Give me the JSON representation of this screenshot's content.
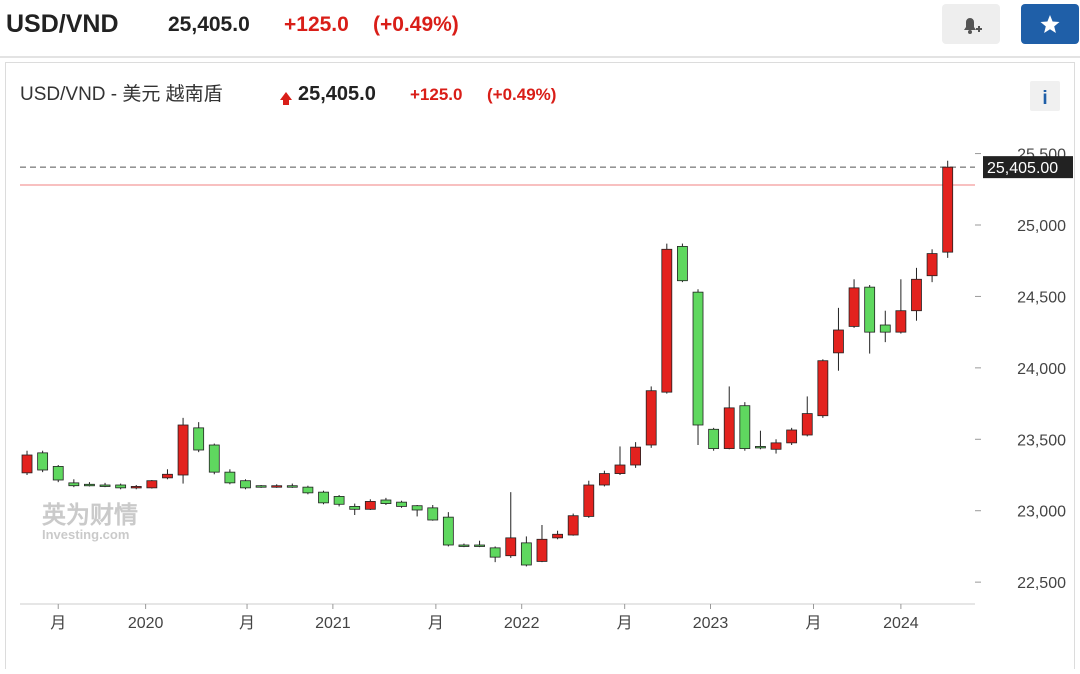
{
  "header": {
    "symbol": "USD/VND",
    "last": "25,405.0",
    "change": "+125.0",
    "change_pct": "(+0.49%)"
  },
  "chart_data": {
    "type": "candlestick",
    "title": "USD/VND - 美元 越南盾",
    "last": "25,405.0",
    "change": "+125.0",
    "change_pct": "(+0.49%)",
    "info": "i",
    "watermark": [
      "英为财情",
      "Investing.com"
    ],
    "up_color": "#e3221e",
    "down_color": "#5fd85f",
    "open": [
      23265,
      23405,
      23310,
      23195,
      23185,
      23180,
      23180,
      23165,
      23160,
      23230,
      23250,
      23580,
      23460,
      23270,
      23210,
      23175,
      23170,
      23175,
      23165,
      23130,
      23100,
      23030,
      23010,
      23075,
      23060,
      23035,
      23020,
      22955,
      22760,
      22760,
      22740,
      22685,
      22775,
      22645,
      22810,
      22830,
      22960,
      23180,
      23260,
      23320,
      23460,
      23830,
      24850,
      24530,
      23570,
      23435,
      23735,
      23450,
      23430,
      23475,
      23530,
      23665,
      24105,
      24290,
      24565,
      24300,
      24250,
      24400,
      24645,
      24810
    ],
    "high": [
      23420,
      23420,
      23320,
      23220,
      23200,
      23195,
      23190,
      23180,
      23215,
      23290,
      23650,
      23620,
      23470,
      23290,
      23220,
      23180,
      23185,
      23190,
      23175,
      23140,
      23110,
      23050,
      23080,
      23090,
      23070,
      23040,
      23040,
      22990,
      22770,
      22790,
      22750,
      23130,
      22820,
      22900,
      22860,
      22980,
      23210,
      23280,
      23450,
      23480,
      23870,
      24870,
      24870,
      24550,
      23580,
      23870,
      23760,
      23560,
      23500,
      23580,
      23800,
      24060,
      24420,
      24620,
      24580,
      24400,
      24620,
      24700,
      24830,
      25450
    ],
    "low": [
      23250,
      23270,
      23200,
      23165,
      23170,
      23165,
      23150,
      23150,
      23155,
      23220,
      23190,
      23410,
      23255,
      23185,
      23150,
      23160,
      23160,
      23160,
      23115,
      23045,
      23030,
      22970,
      23005,
      23040,
      23020,
      22960,
      22930,
      22750,
      22745,
      22745,
      22640,
      22670,
      22610,
      22640,
      22800,
      22825,
      22950,
      23170,
      23250,
      23300,
      23440,
      23820,
      24600,
      23460,
      23420,
      23430,
      23420,
      23430,
      23400,
      23460,
      23520,
      23650,
      23980,
      24280,
      24100,
      24180,
      24240,
      24330,
      24600,
      24770
    ],
    "close": [
      23390,
      23285,
      23215,
      23175,
      23175,
      23175,
      23160,
      23170,
      23210,
      23255,
      23600,
      23425,
      23270,
      23195,
      23160,
      23170,
      23175,
      23170,
      23125,
      23055,
      23045,
      23010,
      23065,
      23050,
      23030,
      23005,
      22935,
      22760,
      22755,
      22755,
      22675,
      22810,
      22620,
      22800,
      22835,
      22965,
      23180,
      23260,
      23320,
      23445,
      23840,
      24830,
      24610,
      23600,
      23435,
      23720,
      23435,
      23440,
      23475,
      23565,
      23680,
      24050,
      24265,
      24560,
      24250,
      24250,
      24400,
      24620,
      24800,
      25405
    ],
    "xlim": [
      -0.45,
      60.75
    ],
    "xticks": [
      {
        "value": 2,
        "label": "月"
      },
      {
        "value": 7.6,
        "label": "2020"
      },
      {
        "value": 14.1,
        "label": "月"
      },
      {
        "value": 19.6,
        "label": "2021"
      },
      {
        "value": 26.2,
        "label": "月"
      },
      {
        "value": 31.7,
        "label": "2022"
      },
      {
        "value": 38.3,
        "label": "月"
      },
      {
        "value": 43.8,
        "label": "2023"
      },
      {
        "value": 50.4,
        "label": "月"
      },
      {
        "value": 56,
        "label": "2024"
      }
    ],
    "ylim": [
      22375,
      25700
    ],
    "yticks": [
      {
        "value": 22500,
        "label": "22,500"
      },
      {
        "value": 23000,
        "label": "23,000"
      },
      {
        "value": 23500,
        "label": "23,500"
      },
      {
        "value": 24000,
        "label": "24,000"
      },
      {
        "value": 24500,
        "label": "24,500"
      },
      {
        "value": 25000,
        "label": "25,000"
      },
      {
        "value": 25500,
        "label": "25,500"
      }
    ],
    "last_price_line": {
      "value": 25405,
      "label": "25,405.00"
    },
    "previous_close_line": 25280
  }
}
